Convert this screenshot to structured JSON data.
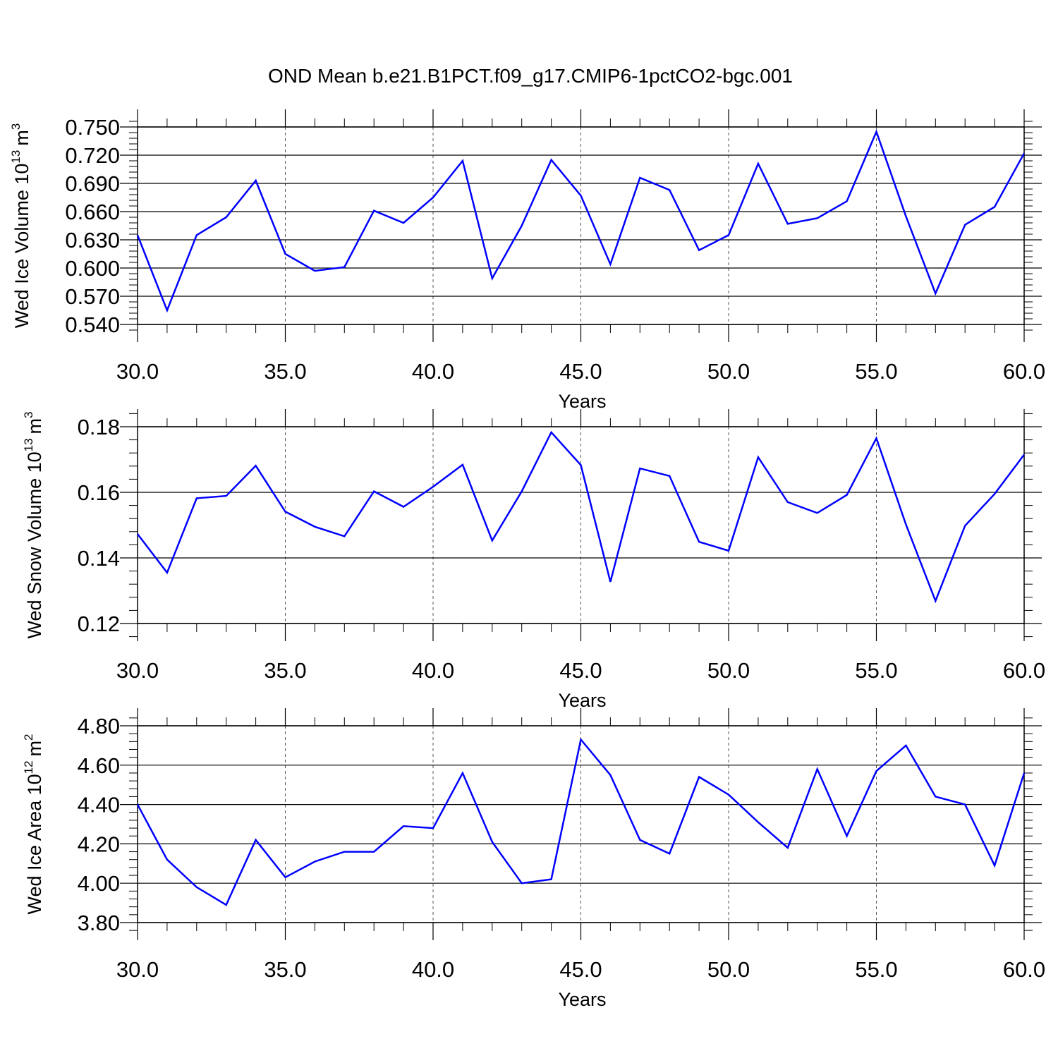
{
  "title": "OND Mean b.e21.B1PCT.f09_g17.CMIP6-1pctCO2-bgc.001",
  "line_color": "#0000ff",
  "chart_data": [
    {
      "type": "line",
      "ylabel_main": "Wed Ice Volume 10",
      "ylabel_exp": "13",
      "ylabel_unit": "m",
      "ylabel_unit_exp": "3",
      "xlabel": "Years",
      "xlim": [
        30,
        60
      ],
      "ylim": [
        0.54,
        0.75
      ],
      "x_ticks": [
        "30.0",
        "35.0",
        "40.0",
        "45.0",
        "50.0",
        "55.0",
        "60.0"
      ],
      "y_ticks": [
        "0.540",
        "0.570",
        "0.600",
        "0.630",
        "0.660",
        "0.690",
        "0.720",
        "0.750"
      ],
      "x": [
        30,
        31,
        32,
        33,
        34,
        35,
        36,
        37,
        38,
        39,
        40,
        41,
        42,
        43,
        44,
        45,
        46,
        47,
        48,
        49,
        50,
        51,
        52,
        53,
        54,
        55,
        56,
        57,
        58,
        59,
        60
      ],
      "values": [
        0.635,
        0.555,
        0.635,
        0.654,
        0.693,
        0.615,
        0.597,
        0.601,
        0.661,
        0.648,
        0.675,
        0.714,
        0.589,
        0.645,
        0.715,
        0.677,
        0.604,
        0.696,
        0.683,
        0.619,
        0.635,
        0.711,
        0.647,
        0.653,
        0.671,
        0.745,
        0.655,
        0.573,
        0.646,
        0.665,
        0.722
      ]
    },
    {
      "type": "line",
      "ylabel_main": "Wed Snow Volume 10",
      "ylabel_exp": "13",
      "ylabel_unit": "m",
      "ylabel_unit_exp": "3",
      "xlabel": "Years",
      "xlim": [
        30,
        60
      ],
      "ylim": [
        0.12,
        0.18
      ],
      "x_ticks": [
        "30.0",
        "35.0",
        "40.0",
        "45.0",
        "50.0",
        "55.0",
        "60.0"
      ],
      "y_ticks": [
        "0.12",
        "0.14",
        "0.16",
        "0.18"
      ],
      "x": [
        30,
        31,
        32,
        33,
        34,
        35,
        36,
        37,
        38,
        39,
        40,
        41,
        42,
        43,
        44,
        45,
        46,
        47,
        48,
        49,
        50,
        51,
        52,
        53,
        54,
        55,
        56,
        57,
        58,
        59,
        60
      ],
      "values": [
        0.1473,
        0.1355,
        0.1582,
        0.1589,
        0.1681,
        0.1541,
        0.1495,
        0.1466,
        0.1603,
        0.1556,
        0.1617,
        0.1684,
        0.1453,
        0.1603,
        0.1783,
        0.1683,
        0.1327,
        0.1673,
        0.165,
        0.1449,
        0.1422,
        0.1707,
        0.157,
        0.1537,
        0.1592,
        0.1765,
        0.1502,
        0.1269,
        0.1498,
        0.1595,
        0.1715
      ]
    },
    {
      "type": "line",
      "ylabel_main": "Wed Ice Area 10",
      "ylabel_exp": "12",
      "ylabel_unit": "m",
      "ylabel_unit_exp": "2",
      "xlabel": "Years",
      "xlim": [
        30,
        60
      ],
      "ylim": [
        3.8,
        4.8
      ],
      "x_ticks": [
        "30.0",
        "35.0",
        "40.0",
        "45.0",
        "50.0",
        "55.0",
        "60.0"
      ],
      "y_ticks": [
        "3.80",
        "4.00",
        "4.20",
        "4.40",
        "4.60",
        "4.80"
      ],
      "x": [
        30,
        31,
        32,
        33,
        34,
        35,
        36,
        37,
        38,
        39,
        40,
        41,
        42,
        43,
        44,
        45,
        46,
        47,
        48,
        49,
        50,
        51,
        52,
        53,
        54,
        55,
        56,
        57,
        58,
        59,
        60
      ],
      "values": [
        4.4,
        4.12,
        3.98,
        3.89,
        4.22,
        4.03,
        4.11,
        4.16,
        4.16,
        4.29,
        4.28,
        4.56,
        4.21,
        4.0,
        4.02,
        4.73,
        4.55,
        4.22,
        4.15,
        4.54,
        4.45,
        4.31,
        4.18,
        4.58,
        4.24,
        4.57,
        4.7,
        4.44,
        4.4,
        4.09,
        4.56
      ]
    }
  ]
}
